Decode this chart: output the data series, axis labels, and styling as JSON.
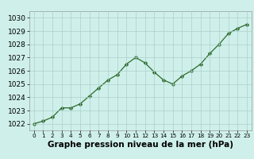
{
  "x": [
    0,
    1,
    2,
    3,
    4,
    5,
    6,
    7,
    8,
    9,
    10,
    11,
    12,
    13,
    14,
    15,
    16,
    17,
    18,
    19,
    20,
    21,
    22,
    23
  ],
  "y": [
    1022.0,
    1022.2,
    1022.5,
    1023.2,
    1023.2,
    1023.5,
    1024.1,
    1024.7,
    1025.3,
    1025.7,
    1026.5,
    1027.0,
    1026.6,
    1025.9,
    1025.3,
    1025.0,
    1025.6,
    1026.0,
    1026.5,
    1027.3,
    1028.0,
    1028.8,
    1029.2,
    1029.5
  ],
  "line_color": "#2d6a2d",
  "marker": "D",
  "marker_size": 2.5,
  "bg_color": "#cff0ea",
  "grid_color": "#aacfca",
  "xlabel": "Graphe pression niveau de la mer (hPa)",
  "xlabel_fontsize": 7.5,
  "tick_fontsize": 6.5,
  "ylim_min": 1021.5,
  "ylim_max": 1030.5,
  "yticks": [
    1022,
    1023,
    1024,
    1025,
    1026,
    1027,
    1028,
    1029,
    1030
  ],
  "xticks": [
    0,
    1,
    2,
    3,
    4,
    5,
    6,
    7,
    8,
    9,
    10,
    11,
    12,
    13,
    14,
    15,
    16,
    17,
    18,
    19,
    20,
    21,
    22,
    23
  ]
}
